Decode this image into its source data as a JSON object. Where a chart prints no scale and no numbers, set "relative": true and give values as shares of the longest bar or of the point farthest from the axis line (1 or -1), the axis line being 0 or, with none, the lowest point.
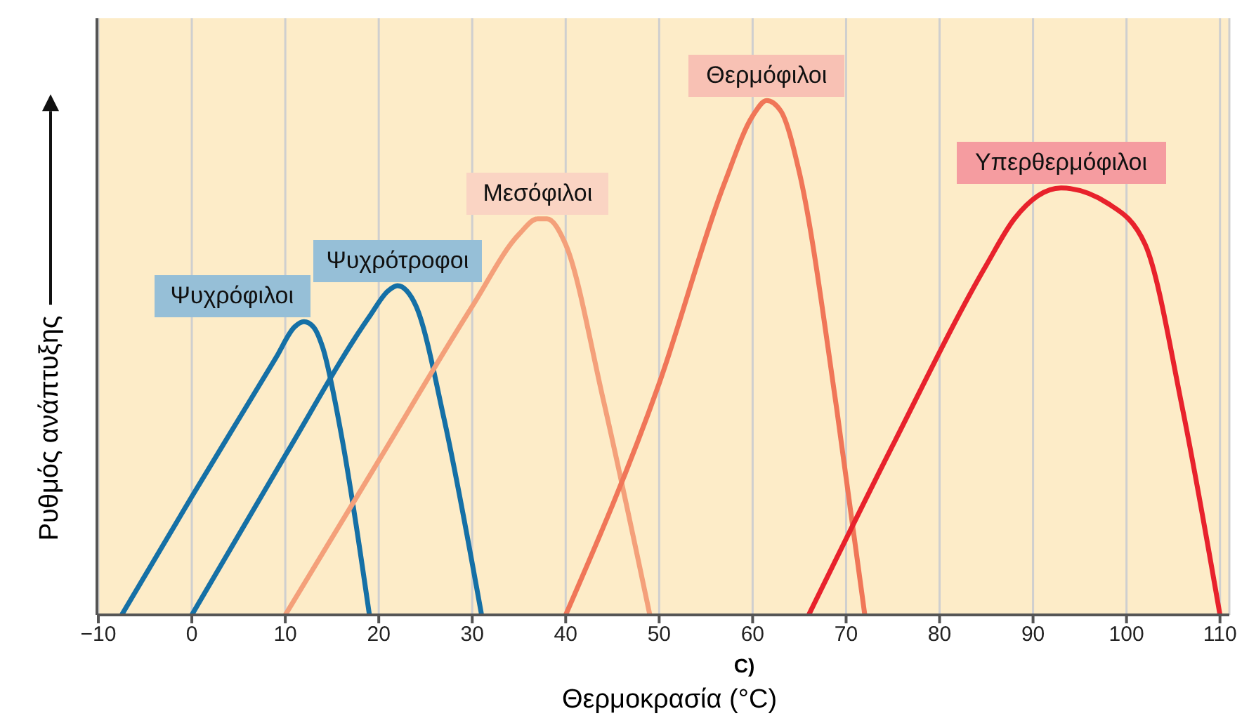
{
  "chart_data": {
    "type": "line",
    "relative": true,
    "xlabel": "Θερμοκρασία (°C)",
    "ylabel": "Ρυθμός ανάπτυξης",
    "xlim": [
      -10,
      111
    ],
    "xticks": [
      -10,
      0,
      10,
      20,
      30,
      40,
      50,
      60,
      70,
      80,
      90,
      100,
      110
    ],
    "grid": "x",
    "marker": "none",
    "line_style": "solid",
    "annotations": [
      "C)"
    ],
    "series": [
      {
        "name": "Ψυχρόφιλοι",
        "color": "#1570a6",
        "x": [
          -7.5,
          0,
          5,
          9,
          11,
          12,
          13,
          14,
          16,
          19
        ],
        "values": [
          0,
          0.23,
          0.38,
          0.5,
          0.56,
          0.57,
          0.56,
          0.52,
          0.35,
          0
        ]
      },
      {
        "name": "Ψυχρότροφοι",
        "color": "#1570a6",
        "x": [
          0,
          10,
          19,
          21,
          22,
          23,
          24,
          27,
          31
        ],
        "values": [
          0,
          0.31,
          0.58,
          0.63,
          0.64,
          0.63,
          0.6,
          0.38,
          0
        ]
      },
      {
        "name": "Μεσόφιλοι",
        "color": "#f4a07a",
        "x": [
          10,
          20,
          30,
          35,
          37,
          38,
          40,
          44,
          49
        ],
        "values": [
          0,
          0.3,
          0.6,
          0.74,
          0.77,
          0.77,
          0.72,
          0.42,
          0
        ]
      },
      {
        "name": "Θερμόφιλοι",
        "color": "#f07658",
        "x": [
          40,
          50,
          57,
          60,
          61.5,
          63,
          65,
          69,
          72
        ],
        "values": [
          0,
          0.45,
          0.84,
          0.97,
          1,
          0.98,
          0.86,
          0.4,
          0
        ]
      },
      {
        "name": "Υπερθερμόφιλοι",
        "color": "#e8222c",
        "x": [
          66,
          75,
          85,
          88,
          93,
          98,
          102,
          106,
          110
        ],
        "values": [
          0,
          0.33,
          0.68,
          0.77,
          0.83,
          0.8,
          0.72,
          0.4,
          0
        ]
      }
    ]
  }
}
